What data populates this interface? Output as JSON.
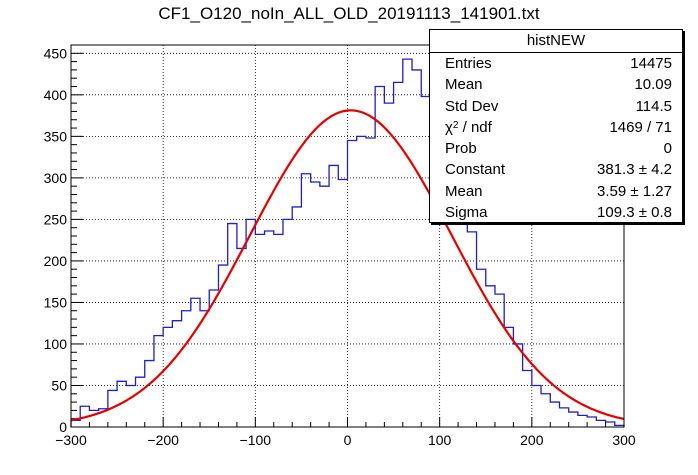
{
  "title": "CF1_O120_noIn_ALL_OLD_20191113_141901.txt",
  "stats_box": {
    "name": "histNEW",
    "rows": [
      {
        "label": "Entries",
        "value": "14475"
      },
      {
        "label": "Mean",
        "value": "10.09"
      },
      {
        "label": "Std Dev",
        "value": "114.5"
      },
      {
        "label": "χ² / ndf",
        "value": "1469 / 71"
      },
      {
        "label": "Prob",
        "value": "0"
      },
      {
        "label": "Constant",
        "value": "381.3 ± 4.2"
      },
      {
        "label": "Mean",
        "value": "3.59 ± 1.27"
      },
      {
        "label": "Sigma",
        "value": "109.3 ± 0.8"
      }
    ]
  },
  "chart_data": {
    "type": "histogram",
    "title": "CF1_O120_noIn_ALL_OLD_20191113_141901.txt",
    "xlim": [
      -300,
      300
    ],
    "ylim": [
      0,
      460
    ],
    "xticks": [
      -300,
      -200,
      -100,
      0,
      100,
      200,
      300
    ],
    "yticks": [
      0,
      50,
      100,
      150,
      200,
      250,
      300,
      350,
      400,
      450
    ],
    "grid": true,
    "bin_width": 10,
    "series": [
      {
        "name": "histNEW",
        "color": "#2020c0",
        "bin_edges_start": -300,
        "values": [
          8,
          25,
          20,
          22,
          44,
          55,
          50,
          60,
          80,
          110,
          120,
          128,
          140,
          155,
          140,
          165,
          195,
          245,
          215,
          250,
          232,
          236,
          232,
          250,
          265,
          305,
          295,
          290,
          315,
          298,
          345,
          350,
          348,
          410,
          390,
          415,
          443,
          430,
          398,
          385,
          390,
          340,
          300,
          235,
          190,
          170,
          160,
          120,
          100,
          68,
          50,
          40,
          30,
          23,
          18,
          14,
          12,
          8,
          6,
          2
        ]
      }
    ],
    "fit": {
      "type": "gaus",
      "color": "#e00000",
      "constant": 381.3,
      "mean": 3.59,
      "sigma": 109.3
    }
  }
}
